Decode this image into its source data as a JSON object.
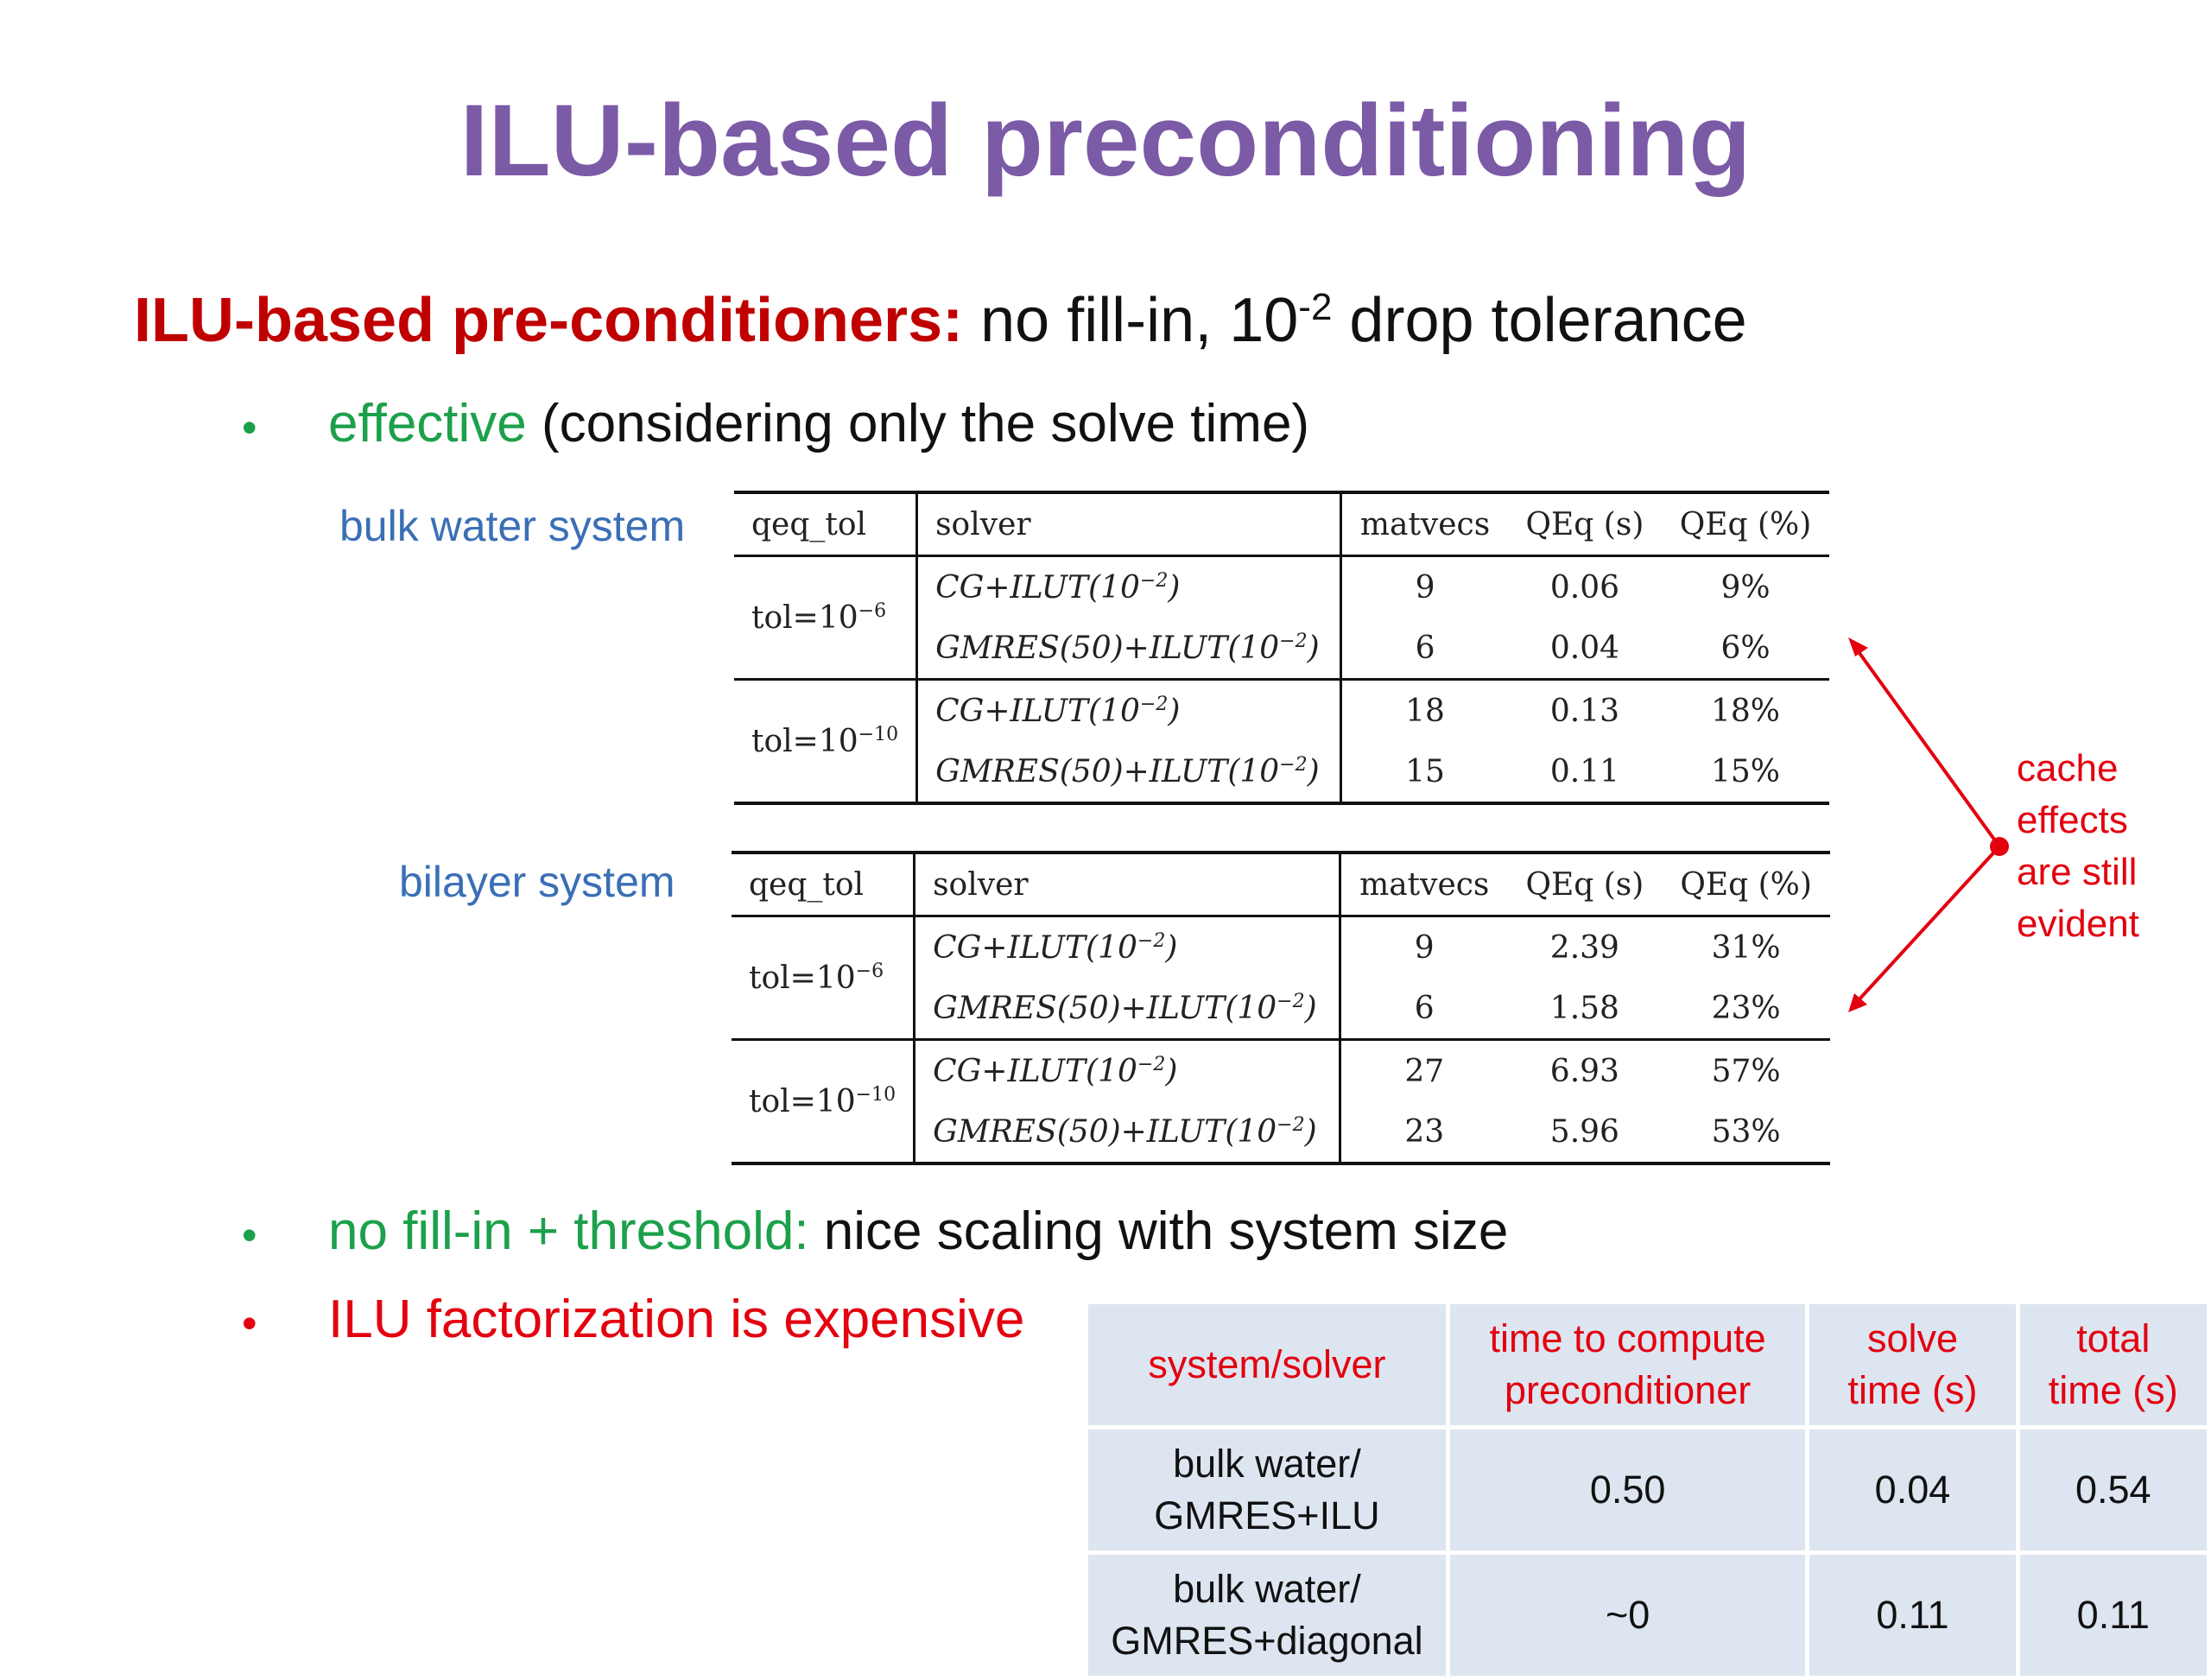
{
  "title": "ILU-based preconditioning",
  "heading": {
    "highlight": "ILU-based pre-conditioners:",
    "text_before_exp": " no fill-in, 10",
    "exponent": "-2",
    "text_after_exp": " drop tolerance"
  },
  "bullets": [
    {
      "symbol": "•",
      "colored": "effective",
      "rest": " (considering only the solve time)"
    },
    {
      "symbol": "•",
      "colored": "no fill-in + threshold:",
      "rest": " nice scaling with system size"
    },
    {
      "symbol": "•",
      "colored": "ILU factorization is expensive",
      "rest": ""
    }
  ],
  "labels": {
    "bulk": "bulk water system",
    "bilayer": "bilayer system"
  },
  "table_headers": {
    "tol": "qeq_tol",
    "solver": "solver",
    "matvecs": "matvecs",
    "qeq_s": "QEq (s)",
    "qeq_pct": "QEq (%)"
  },
  "solvers": {
    "cg_base": "CG+ILUT(10",
    "gmres_base": "GMRES(50)+ILUT(10",
    "exp": "−2",
    "close": ")"
  },
  "tols": {
    "base": "tol=10",
    "e6": "−6",
    "e10": "−10"
  },
  "bulk_rows": [
    {
      "matvecs": "9",
      "qeq_s": "0.06",
      "qeq_pct": "9%"
    },
    {
      "matvecs": "6",
      "qeq_s": "0.04",
      "qeq_pct": "6%"
    },
    {
      "matvecs": "18",
      "qeq_s": "0.13",
      "qeq_pct": "18%"
    },
    {
      "matvecs": "15",
      "qeq_s": "0.11",
      "qeq_pct": "15%"
    }
  ],
  "bilayer_rows": [
    {
      "matvecs": "9",
      "qeq_s": "2.39",
      "qeq_pct": "31%"
    },
    {
      "matvecs": "6",
      "qeq_s": "1.58",
      "qeq_pct": "23%"
    },
    {
      "matvecs": "27",
      "qeq_s": "6.93",
      "qeq_pct": "57%"
    },
    {
      "matvecs": "23",
      "qeq_s": "5.96",
      "qeq_pct": "53%"
    }
  ],
  "note": {
    "line1": "cache",
    "line2": "effects",
    "line3": "are still",
    "line4": "evident"
  },
  "cost_table": {
    "headers": {
      "c1": "system/solver",
      "c2a": "time to compute",
      "c2b": "preconditioner",
      "c3a": "solve",
      "c3b": "time (s)",
      "c4a": "total",
      "c4b": "time (s)"
    },
    "rows": [
      {
        "sys_a": "bulk water/",
        "sys_b": "GMRES+ILU",
        "precond": "0.50",
        "solve": "0.04",
        "total": "0.54"
      },
      {
        "sys_a": "bulk water/",
        "sys_b": "GMRES+diagonal",
        "precond": "~0",
        "solve": "0.11",
        "total": "0.11"
      }
    ]
  },
  "colors": {
    "title": "#7b5aa6",
    "highlight": "#c00000",
    "green": "#1ca04b",
    "red": "#e3000f",
    "label_blue": "#3a6fb5",
    "cost_cell": "#dde5f0"
  }
}
